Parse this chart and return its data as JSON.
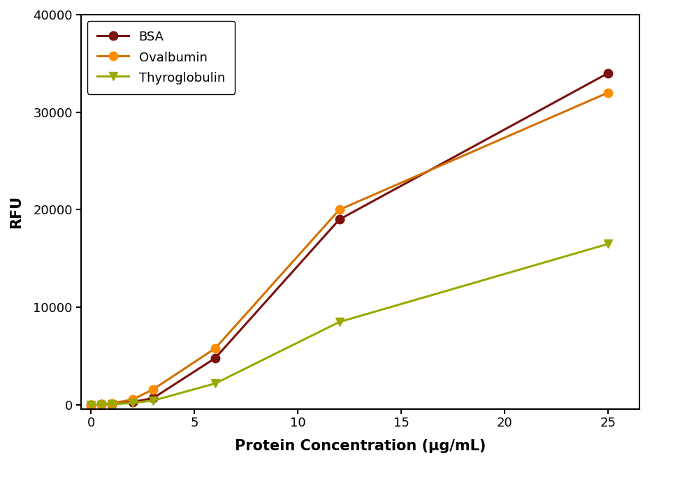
{
  "series": [
    {
      "label": "BSA",
      "color": "#7B1010",
      "marker": "o",
      "marker_color": "#7B1010",
      "x": [
        0,
        0.5,
        1,
        2,
        3,
        6,
        12,
        25
      ],
      "y": [
        0,
        50,
        100,
        300,
        700,
        4800,
        19000,
        34000
      ]
    },
    {
      "label": "Ovalbumin",
      "color": "#D27000",
      "marker": "o",
      "marker_color": "#FF8C00",
      "x": [
        0,
        0.5,
        1,
        2,
        3,
        6,
        12,
        25
      ],
      "y": [
        0,
        80,
        180,
        550,
        1600,
        5800,
        20000,
        32000
      ]
    },
    {
      "label": "Thyroglobulin",
      "color": "#9AAA00",
      "marker": "v",
      "marker_color": "#9AAA00",
      "x": [
        0,
        0.5,
        1,
        2,
        3,
        6,
        12,
        25
      ],
      "y": [
        0,
        30,
        70,
        200,
        450,
        2200,
        8500,
        16500
      ]
    }
  ],
  "xlabel": "Protein Concentration (μg/mL)",
  "ylabel": "RFU",
  "xlim": [
    -0.5,
    26.5
  ],
  "ylim": [
    -400,
    40000
  ],
  "xticks": [
    0,
    5,
    10,
    15,
    20,
    25
  ],
  "yticks": [
    0,
    10000,
    20000,
    30000,
    40000
  ],
  "legend_loc": "upper left",
  "xlabel_fontsize": 15,
  "ylabel_fontsize": 15,
  "tick_fontsize": 13,
  "legend_fontsize": 13,
  "linewidth": 2.2,
  "markersize": 9,
  "background_color": "#ffffff",
  "spine_color": "#000000"
}
